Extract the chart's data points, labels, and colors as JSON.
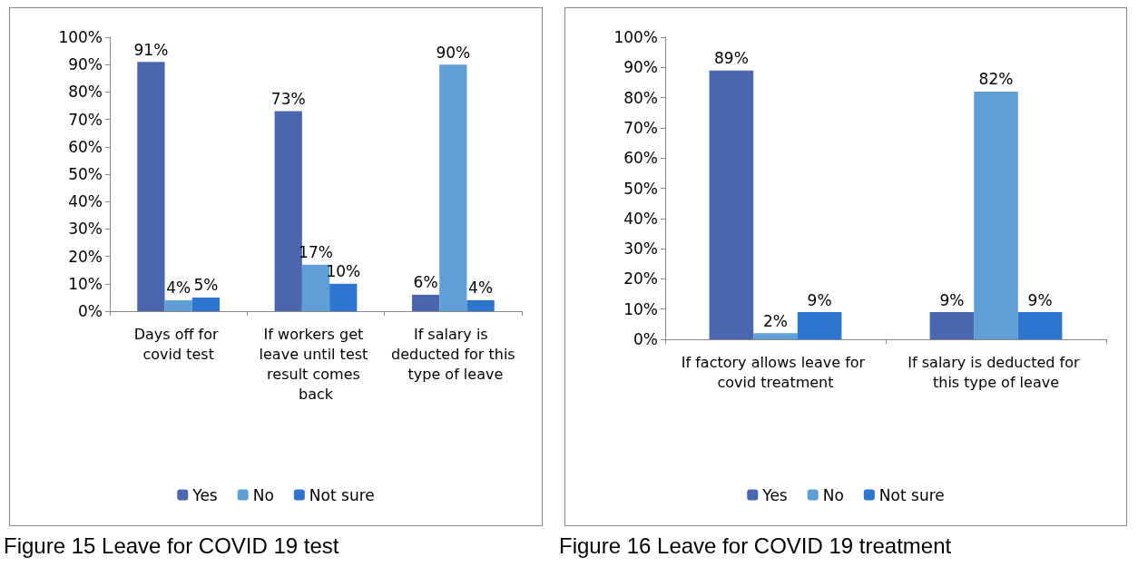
{
  "chart_data": [
    {
      "type": "bar",
      "categories": [
        "Days off for covid test",
        "If workers get leave until test result comes back",
        "If salary is deducted for this type of leave"
      ],
      "series": [
        {
          "name": "Yes",
          "color": "#4a66ac",
          "values": [
            91,
            73,
            6
          ]
        },
        {
          "name": "No",
          "color": "#5f9fd6",
          "values": [
            4,
            17,
            90
          ]
        },
        {
          "name": "Not sure",
          "color": "#2e75cf",
          "values": [
            5,
            10,
            4
          ]
        }
      ],
      "ylim": [
        0,
        100
      ],
      "yticks": [
        {
          "value": 0,
          "label": "0%"
        },
        {
          "value": 10,
          "label": "10%"
        },
        {
          "value": 20,
          "label": "20%"
        },
        {
          "value": 30,
          "label": "30%"
        },
        {
          "value": 40,
          "label": "40%"
        },
        {
          "value": 50,
          "label": "50%"
        },
        {
          "value": 60,
          "label": "60%"
        },
        {
          "value": 70,
          "label": "70%"
        },
        {
          "value": 80,
          "label": "80%"
        },
        {
          "value": 90,
          "label": "90%"
        },
        {
          "value": 100,
          "label": "100%"
        }
      ],
      "value_labels": [
        [
          "91%",
          "73%",
          "6%"
        ],
        [
          "4%",
          "17%",
          "90%"
        ],
        [
          "5%",
          "10%",
          "4%"
        ]
      ],
      "grid": false,
      "legend": "bottom",
      "annotations": [
        "Figure 15 Leave for COVID 19 test"
      ]
    },
    {
      "type": "bar",
      "categories": [
        "If factory allows leave for covid treatment",
        "If salary is deducted for this type of leave"
      ],
      "series": [
        {
          "name": "Yes",
          "color": "#4a66ac",
          "values": [
            89,
            9
          ]
        },
        {
          "name": "No",
          "color": "#5f9fd6",
          "values": [
            2,
            82
          ]
        },
        {
          "name": "Not sure",
          "color": "#2e75cf",
          "values": [
            9,
            9
          ]
        }
      ],
      "ylim": [
        0,
        100
      ],
      "yticks": [
        {
          "value": 0,
          "label": "0%"
        },
        {
          "value": 10,
          "label": "10%"
        },
        {
          "value": 20,
          "label": "20%"
        },
        {
          "value": 30,
          "label": "30%"
        },
        {
          "value": 40,
          "label": "40%"
        },
        {
          "value": 50,
          "label": "50%"
        },
        {
          "value": 60,
          "label": "60%"
        },
        {
          "value": 70,
          "label": "70%"
        },
        {
          "value": 80,
          "label": "80%"
        },
        {
          "value": 90,
          "label": "90%"
        },
        {
          "value": 100,
          "label": "100%"
        }
      ],
      "value_labels": [
        [
          "89%",
          "9%"
        ],
        [
          "2%",
          "82%"
        ],
        [
          "9%",
          "9%"
        ]
      ],
      "grid": false,
      "legend": "bottom",
      "annotations": [
        "Figure 16 Leave for COVID 19 treatment"
      ]
    }
  ]
}
